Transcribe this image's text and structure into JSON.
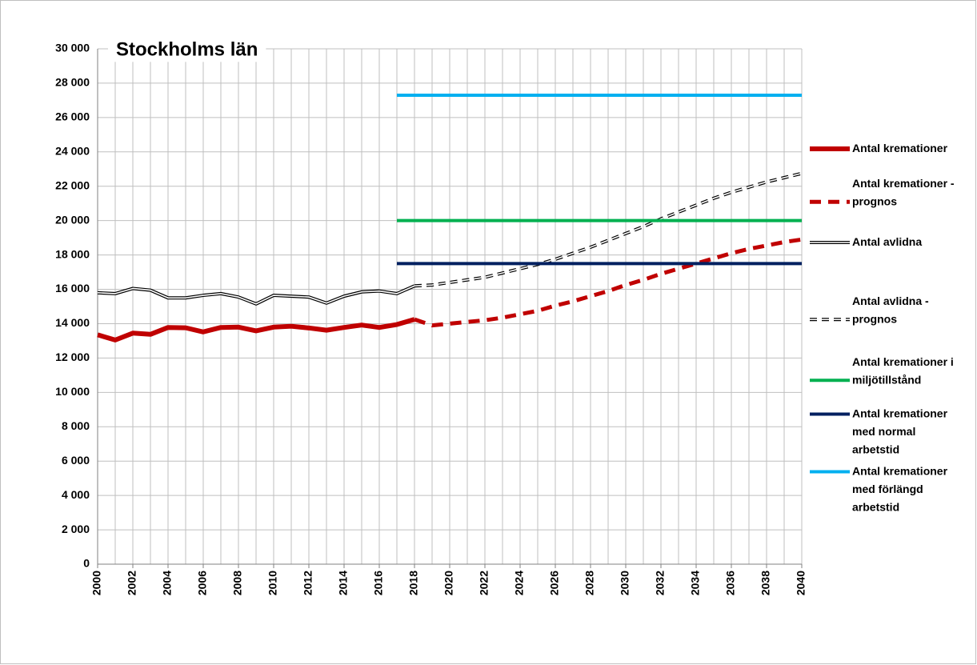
{
  "chart_data": {
    "type": "line",
    "title": "Stockholms län",
    "x": [
      2000,
      2001,
      2002,
      2003,
      2004,
      2005,
      2006,
      2007,
      2008,
      2009,
      2010,
      2011,
      2012,
      2013,
      2014,
      2015,
      2016,
      2017,
      2018,
      2019,
      2020,
      2021,
      2022,
      2023,
      2024,
      2025,
      2026,
      2027,
      2028,
      2029,
      2030,
      2031,
      2032,
      2033,
      2034,
      2035,
      2036,
      2037,
      2038,
      2039,
      2040
    ],
    "xlim": [
      2000,
      2040
    ],
    "xticks": [
      2000,
      2002,
      2004,
      2006,
      2008,
      2010,
      2012,
      2014,
      2016,
      2018,
      2020,
      2022,
      2024,
      2026,
      2028,
      2030,
      2032,
      2034,
      2036,
      2038,
      2040
    ],
    "ylim": [
      0,
      30000
    ],
    "yticks": [
      0,
      {
        "value": 2000,
        "label": "2 000"
      },
      {
        "value": 4000,
        "label": "4 000"
      },
      {
        "value": 6000,
        "label": "6 000"
      },
      {
        "value": 8000,
        "label": "8 000"
      },
      {
        "value": 10000,
        "label": "10 000"
      },
      {
        "value": 12000,
        "label": "12 000"
      },
      {
        "value": 14000,
        "label": "14 000"
      },
      {
        "value": 16000,
        "label": "16 000"
      },
      {
        "value": 18000,
        "label": "18 000"
      },
      {
        "value": 20000,
        "label": "20 000"
      },
      {
        "value": 22000,
        "label": "22 000"
      },
      {
        "value": 24000,
        "label": "24 000"
      },
      {
        "value": 26000,
        "label": "26 000"
      },
      {
        "value": 28000,
        "label": "28 000"
      },
      {
        "value": 30000,
        "label": "30 000"
      }
    ],
    "grid": true,
    "legend": "right",
    "series": [
      {
        "name": "Antal kremationer",
        "color": "#c00000",
        "style": "solid",
        "values": [
          13350,
          13050,
          13450,
          13380,
          13780,
          13760,
          13520,
          13780,
          13800,
          13580,
          13800,
          13850,
          13750,
          13620,
          13780,
          13920,
          13780,
          13950,
          14250,
          null,
          null,
          null,
          null,
          null,
          null,
          null,
          null,
          null,
          null,
          null,
          null,
          null,
          null,
          null,
          null,
          null,
          null,
          null,
          null,
          null,
          null
        ]
      },
      {
        "name": "Antal kremationer - prognos",
        "color": "#c00000",
        "style": "dashed",
        "values": [
          null,
          null,
          null,
          null,
          null,
          null,
          null,
          null,
          null,
          null,
          null,
          null,
          null,
          null,
          null,
          null,
          null,
          null,
          14250,
          13900,
          14000,
          14100,
          14200,
          14350,
          14550,
          14750,
          15050,
          15300,
          15600,
          15900,
          16250,
          16550,
          16900,
          17200,
          17500,
          17800,
          18100,
          18350,
          18550,
          18750,
          18900
        ]
      },
      {
        "name": "Antal avlidna",
        "color": "#000000",
        "style": "double",
        "values": [
          15800,
          15750,
          16050,
          15950,
          15500,
          15500,
          15650,
          15750,
          15550,
          15150,
          15650,
          15600,
          15550,
          15200,
          15600,
          15850,
          15900,
          15750,
          16200,
          null,
          null,
          null,
          null,
          null,
          null,
          null,
          null,
          null,
          null,
          null,
          null,
          null,
          null,
          null,
          null,
          null,
          null,
          null,
          null,
          null,
          null
        ]
      },
      {
        "name": "Antal avlidna - prognos",
        "color": "#000000",
        "style": "double-dashed",
        "values": [
          null,
          null,
          null,
          null,
          null,
          null,
          null,
          null,
          null,
          null,
          null,
          null,
          null,
          null,
          null,
          null,
          null,
          null,
          16200,
          16250,
          16400,
          16550,
          16700,
          16950,
          17200,
          17450,
          17750,
          18100,
          18450,
          18850,
          19250,
          19650,
          20100,
          20500,
          20900,
          21300,
          21650,
          21950,
          22250,
          22500,
          22750
        ]
      },
      {
        "name": "Antal kremationer i miljötillstånd",
        "color": "#00b050",
        "style": "solid",
        "values": [
          null,
          null,
          null,
          null,
          null,
          null,
          null,
          null,
          null,
          null,
          null,
          null,
          null,
          null,
          null,
          null,
          null,
          20000,
          20000,
          20000,
          20000,
          20000,
          20000,
          20000,
          20000,
          20000,
          20000,
          20000,
          20000,
          20000,
          20000,
          20000,
          20000,
          20000,
          20000,
          20000,
          20000,
          20000,
          20000,
          20000,
          20000
        ]
      },
      {
        "name": "Antal kremationer med normal arbetstid",
        "color": "#002060",
        "style": "solid",
        "values": [
          null,
          null,
          null,
          null,
          null,
          null,
          null,
          null,
          null,
          null,
          null,
          null,
          null,
          null,
          null,
          null,
          null,
          17500,
          17500,
          17500,
          17500,
          17500,
          17500,
          17500,
          17500,
          17500,
          17500,
          17500,
          17500,
          17500,
          17500,
          17500,
          17500,
          17500,
          17500,
          17500,
          17500,
          17500,
          17500,
          17500,
          17500
        ]
      },
      {
        "name": "Antal kremationer med förlängd arbetstid",
        "color": "#00b0f0",
        "style": "solid",
        "values": [
          null,
          null,
          null,
          null,
          null,
          null,
          null,
          null,
          null,
          null,
          null,
          null,
          null,
          null,
          null,
          null,
          null,
          27300,
          27300,
          27300,
          27300,
          27300,
          27300,
          27300,
          27300,
          27300,
          27300,
          27300,
          27300,
          27300,
          27300,
          27300,
          27300,
          27300,
          27300,
          27300,
          27300,
          27300,
          27300,
          27300,
          27300
        ]
      }
    ]
  }
}
